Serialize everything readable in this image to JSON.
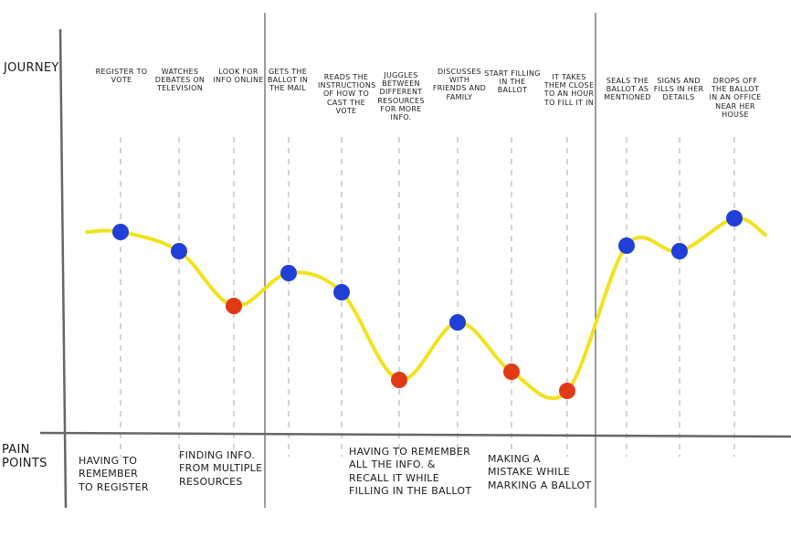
{
  "labels": {
    "journey": "Journey",
    "pain_points_line1": "Pain",
    "pain_points_line2": "Points"
  },
  "colors": {
    "curve": "#f2e21c",
    "positive_point": "#1f3fd6",
    "pain_point": "#e23a16",
    "axis": "#666666",
    "dashed_guide": "#bdbdbd",
    "ink": "#1a1a1a"
  },
  "phases": 3,
  "steps": [
    {
      "label": "Register to vote",
      "level": 0.28,
      "kind": "positive"
    },
    {
      "label": "Watches debates on television",
      "level": 0.35,
      "kind": "positive"
    },
    {
      "label": "Look for info online",
      "level": 0.55,
      "kind": "pain"
    },
    {
      "label": "Gets the ballot in the mail",
      "level": 0.43,
      "kind": "positive"
    },
    {
      "label": "Reads the instructions of how to cast the vote",
      "level": 0.5,
      "kind": "positive"
    },
    {
      "label": "Juggles between different resources for more info.",
      "level": 0.82,
      "kind": "pain"
    },
    {
      "label": "Discusses with friends and family",
      "level": 0.61,
      "kind": "positive"
    },
    {
      "label": "Start filling in the ballot",
      "level": 0.79,
      "kind": "pain"
    },
    {
      "label": "It takes them close to an hour to fill it in",
      "level": 0.86,
      "kind": "pain"
    },
    {
      "label": "Seals the ballot as mentioned",
      "level": 0.33,
      "kind": "positive"
    },
    {
      "label": "Signs and fills in her details",
      "level": 0.35,
      "kind": "positive"
    },
    {
      "label": "Drops off the ballot in an office near her house",
      "level": 0.23,
      "kind": "positive"
    }
  ],
  "pain_points": [
    {
      "lines": [
        "Having to",
        "remember",
        "to register"
      ]
    },
    {
      "lines": [
        "Finding info.",
        "from multiple",
        "resources"
      ]
    },
    {
      "lines": [
        "Having to remember",
        "all the info. &",
        "recall it while",
        "filling in the ballot"
      ]
    },
    {
      "lines": [
        "Making a",
        "mistake while",
        "marking a ballot"
      ]
    }
  ]
}
